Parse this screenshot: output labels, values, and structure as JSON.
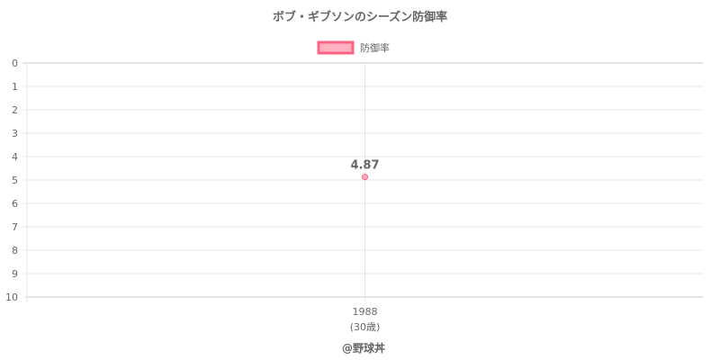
{
  "chart_data": {
    "type": "line",
    "title": "ボブ・ギブソンのシーズン防御率",
    "categories": [
      "1988"
    ],
    "category_sublabels": [
      "(30歳)"
    ],
    "series": [
      {
        "name": "防御率",
        "values": [
          4.87
        ],
        "data_labels": [
          "4.87"
        ]
      }
    ],
    "ylim": [
      0,
      10
    ],
    "y_reversed": true,
    "y_ticks": [
      "0",
      "1",
      "2",
      "3",
      "4",
      "5",
      "6",
      "7",
      "8",
      "9",
      "10"
    ],
    "grid": true,
    "legend_position": "top",
    "colors": {
      "point_fill": "#ffb1c1",
      "point_border": "#ff6384",
      "grid": "#e5e5e5",
      "text": "#666666"
    }
  },
  "credit": "@野球丼"
}
